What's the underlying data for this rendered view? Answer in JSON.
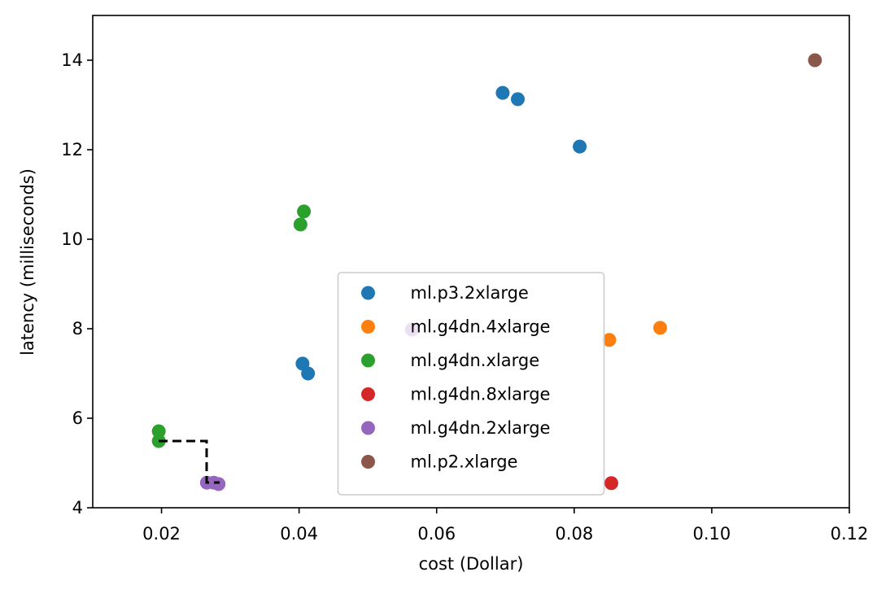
{
  "chart_data": {
    "type": "scatter",
    "xlabel": "cost (Dollar)",
    "ylabel": "latency (milliseconds)",
    "xlim": [
      0.01,
      0.12
    ],
    "ylim": [
      4,
      15
    ],
    "xticks": [
      0.02,
      0.04,
      0.06,
      0.08,
      {
        "value": 0.1,
        "label": "0.10"
      },
      0.12
    ],
    "yticks": [
      4,
      6,
      8,
      10,
      12,
      14
    ],
    "legend": "lower center",
    "series": [
      {
        "name": "ml.p3.2xlarge",
        "color": "#1f77b4",
        "x": [
          0.0696,
          0.0718,
          0.0808,
          0.0405,
          0.0413
        ],
        "values": [
          13.27,
          13.13,
          12.07,
          7.22,
          7.0
        ]
      },
      {
        "name": "ml.g4dn.4xlarge",
        "color": "#ff7f0e",
        "x": [
          0.0925,
          0.0851
        ],
        "values": [
          8.02,
          7.75
        ]
      },
      {
        "name": "ml.g4dn.xlarge",
        "color": "#2ca02c",
        "x": [
          0.0407,
          0.0402,
          0.0196,
          0.0196
        ],
        "values": [
          10.62,
          10.33,
          5.71,
          5.49
        ]
      },
      {
        "name": "ml.g4dn.8xlarge",
        "color": "#d62728",
        "x": [
          0.0854
        ],
        "values": [
          4.55
        ]
      },
      {
        "name": "ml.g4dn.2xlarge",
        "color": "#9467bd",
        "x": [
          0.0266,
          0.0276,
          0.0283,
          0.0564
        ],
        "values": [
          4.56,
          4.56,
          4.53,
          7.98
        ]
      },
      {
        "name": "ml.p2.xlarge",
        "color": "#8c564b",
        "x": [
          0.115
        ],
        "values": [
          14.0
        ]
      }
    ]
  }
}
